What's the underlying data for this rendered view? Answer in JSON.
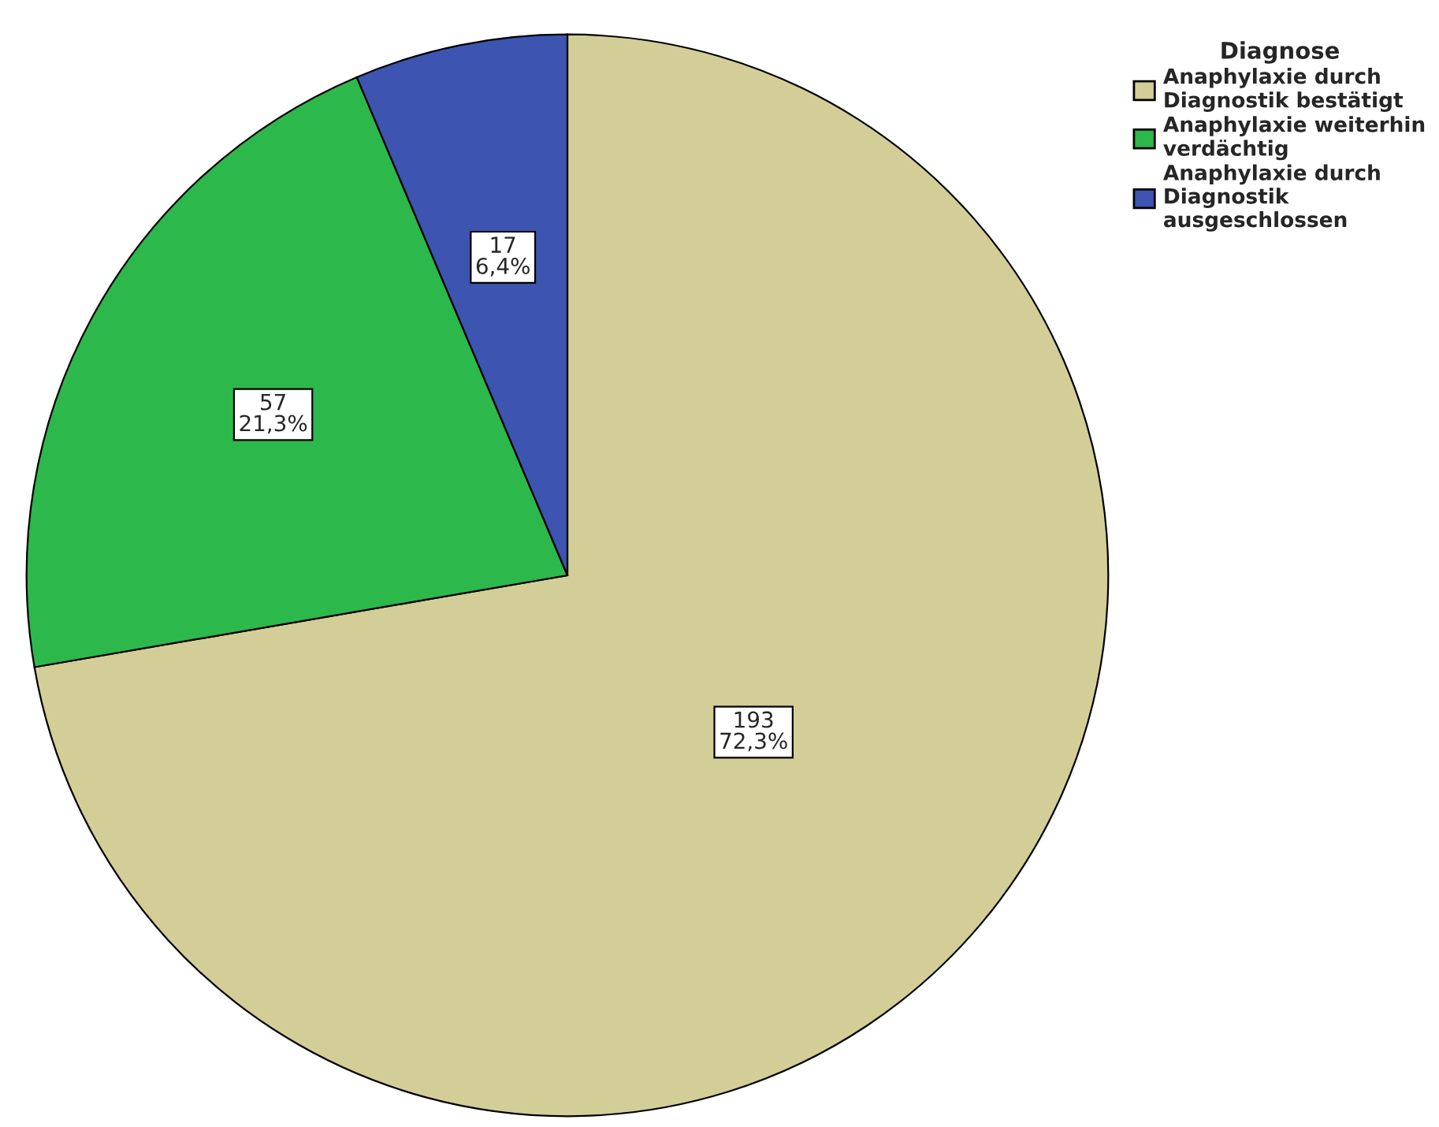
{
  "chart_data": {
    "type": "pie",
    "categories": [
      "Anaphylaxie durch\nDiagnostik bestätigt",
      "Anaphylaxie weiterhin\nverdächtig",
      "Anaphylaxie durch\nDiagnostik\nausgeschlossen"
    ],
    "values": [
      193,
      57,
      17
    ],
    "colors": [
      "#d3ce97",
      "#2db84b",
      "#3d55b0"
    ],
    "value_labels": [
      "193\n72,3%",
      "57\n21,3%",
      "17\n6,4%"
    ],
    "legend_title": "Diagnose",
    "legend": "top right"
  }
}
